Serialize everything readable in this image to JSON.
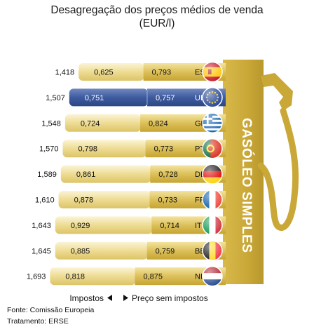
{
  "title_line1": "Desagregação dos preços médios de venda",
  "title_line2": "(EUR/l)",
  "pump_label": "GASÓLEO SIMPLES",
  "legend_left": "Impostos",
  "legend_right": "Preço sem impostos",
  "source_line": "Fonte: Comissão Europeia",
  "treatment_line": "Tratamento: ERSE",
  "colors": {
    "gold_light": "#f6ecc0",
    "gold_mid": "#e5cd72",
    "gold_dark": "#c8a631",
    "highlight_blue": "#3d5a9e",
    "pump": "#ccab33"
  },
  "chart_data": {
    "type": "bar",
    "stacked": true,
    "orientation": "horizontal",
    "unit": "EUR/l",
    "categories": [
      "ES",
      "UE",
      "GR",
      "PT",
      "DE",
      "FR",
      "IT",
      "BE",
      "NL"
    ],
    "highlight": "UE",
    "series": [
      {
        "name": "Impostos",
        "values": [
          "0,625",
          "0,751",
          "0,724",
          "0,798",
          "0,861",
          "0,878",
          "0,929",
          "0,885",
          "0,818"
        ]
      },
      {
        "name": "Preço sem impostos",
        "values": [
          "0,793",
          "0,757",
          "0,824",
          "0,773",
          "0,728",
          "0,733",
          "0,714",
          "0,759",
          "0,875"
        ]
      }
    ],
    "totals": [
      "1,418",
      "1,507",
      "1,548",
      "1,570",
      "1,589",
      "1,610",
      "1,643",
      "1,645",
      "1,693"
    ],
    "flags": [
      "spain",
      "eu",
      "greece",
      "portugal",
      "germany",
      "france",
      "italy",
      "belgium",
      "netherlands"
    ]
  }
}
